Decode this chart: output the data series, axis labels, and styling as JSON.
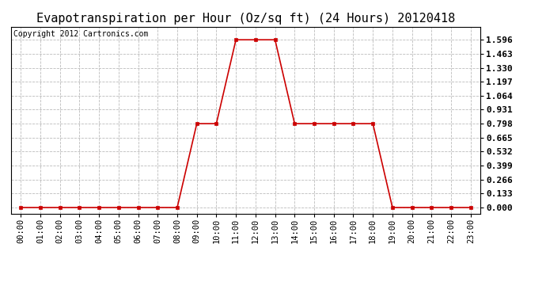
{
  "title": "Evapotranspiration per Hour (Oz/sq ft) (24 Hours) 20120418",
  "copyright_text": "Copyright 2012 Cartronics.com",
  "hours": [
    0,
    1,
    2,
    3,
    4,
    5,
    6,
    7,
    8,
    9,
    10,
    11,
    12,
    13,
    14,
    15,
    16,
    17,
    18,
    19,
    20,
    21,
    22,
    23
  ],
  "values": [
    0.0,
    0.0,
    0.0,
    0.0,
    0.0,
    0.0,
    0.0,
    0.0,
    0.0,
    0.798,
    0.798,
    1.596,
    1.596,
    1.596,
    0.798,
    0.798,
    0.798,
    0.798,
    0.798,
    0.0,
    0.0,
    0.0,
    0.0,
    0.0
  ],
  "line_color": "#cc0000",
  "marker": "s",
  "marker_size": 3,
  "background_color": "#ffffff",
  "plot_bg_color": "#ffffff",
  "grid_color": "#bbbbbb",
  "title_fontsize": 11,
  "copyright_fontsize": 7,
  "tick_label_fontsize": 7.5,
  "ytick_fontsize": 8,
  "ytick_values": [
    0.0,
    0.133,
    0.266,
    0.399,
    0.532,
    0.665,
    0.798,
    0.931,
    1.064,
    1.197,
    1.33,
    1.463,
    1.596
  ],
  "ylim": [
    -0.06,
    1.72
  ],
  "xlim": [
    -0.5,
    23.5
  ],
  "hour_labels": [
    "00:00",
    "01:00",
    "02:00",
    "03:00",
    "04:00",
    "05:00",
    "06:00",
    "07:00",
    "08:00",
    "09:00",
    "10:00",
    "11:00",
    "12:00",
    "13:00",
    "14:00",
    "15:00",
    "16:00",
    "17:00",
    "18:00",
    "19:00",
    "20:00",
    "21:00",
    "22:00",
    "23:00"
  ]
}
